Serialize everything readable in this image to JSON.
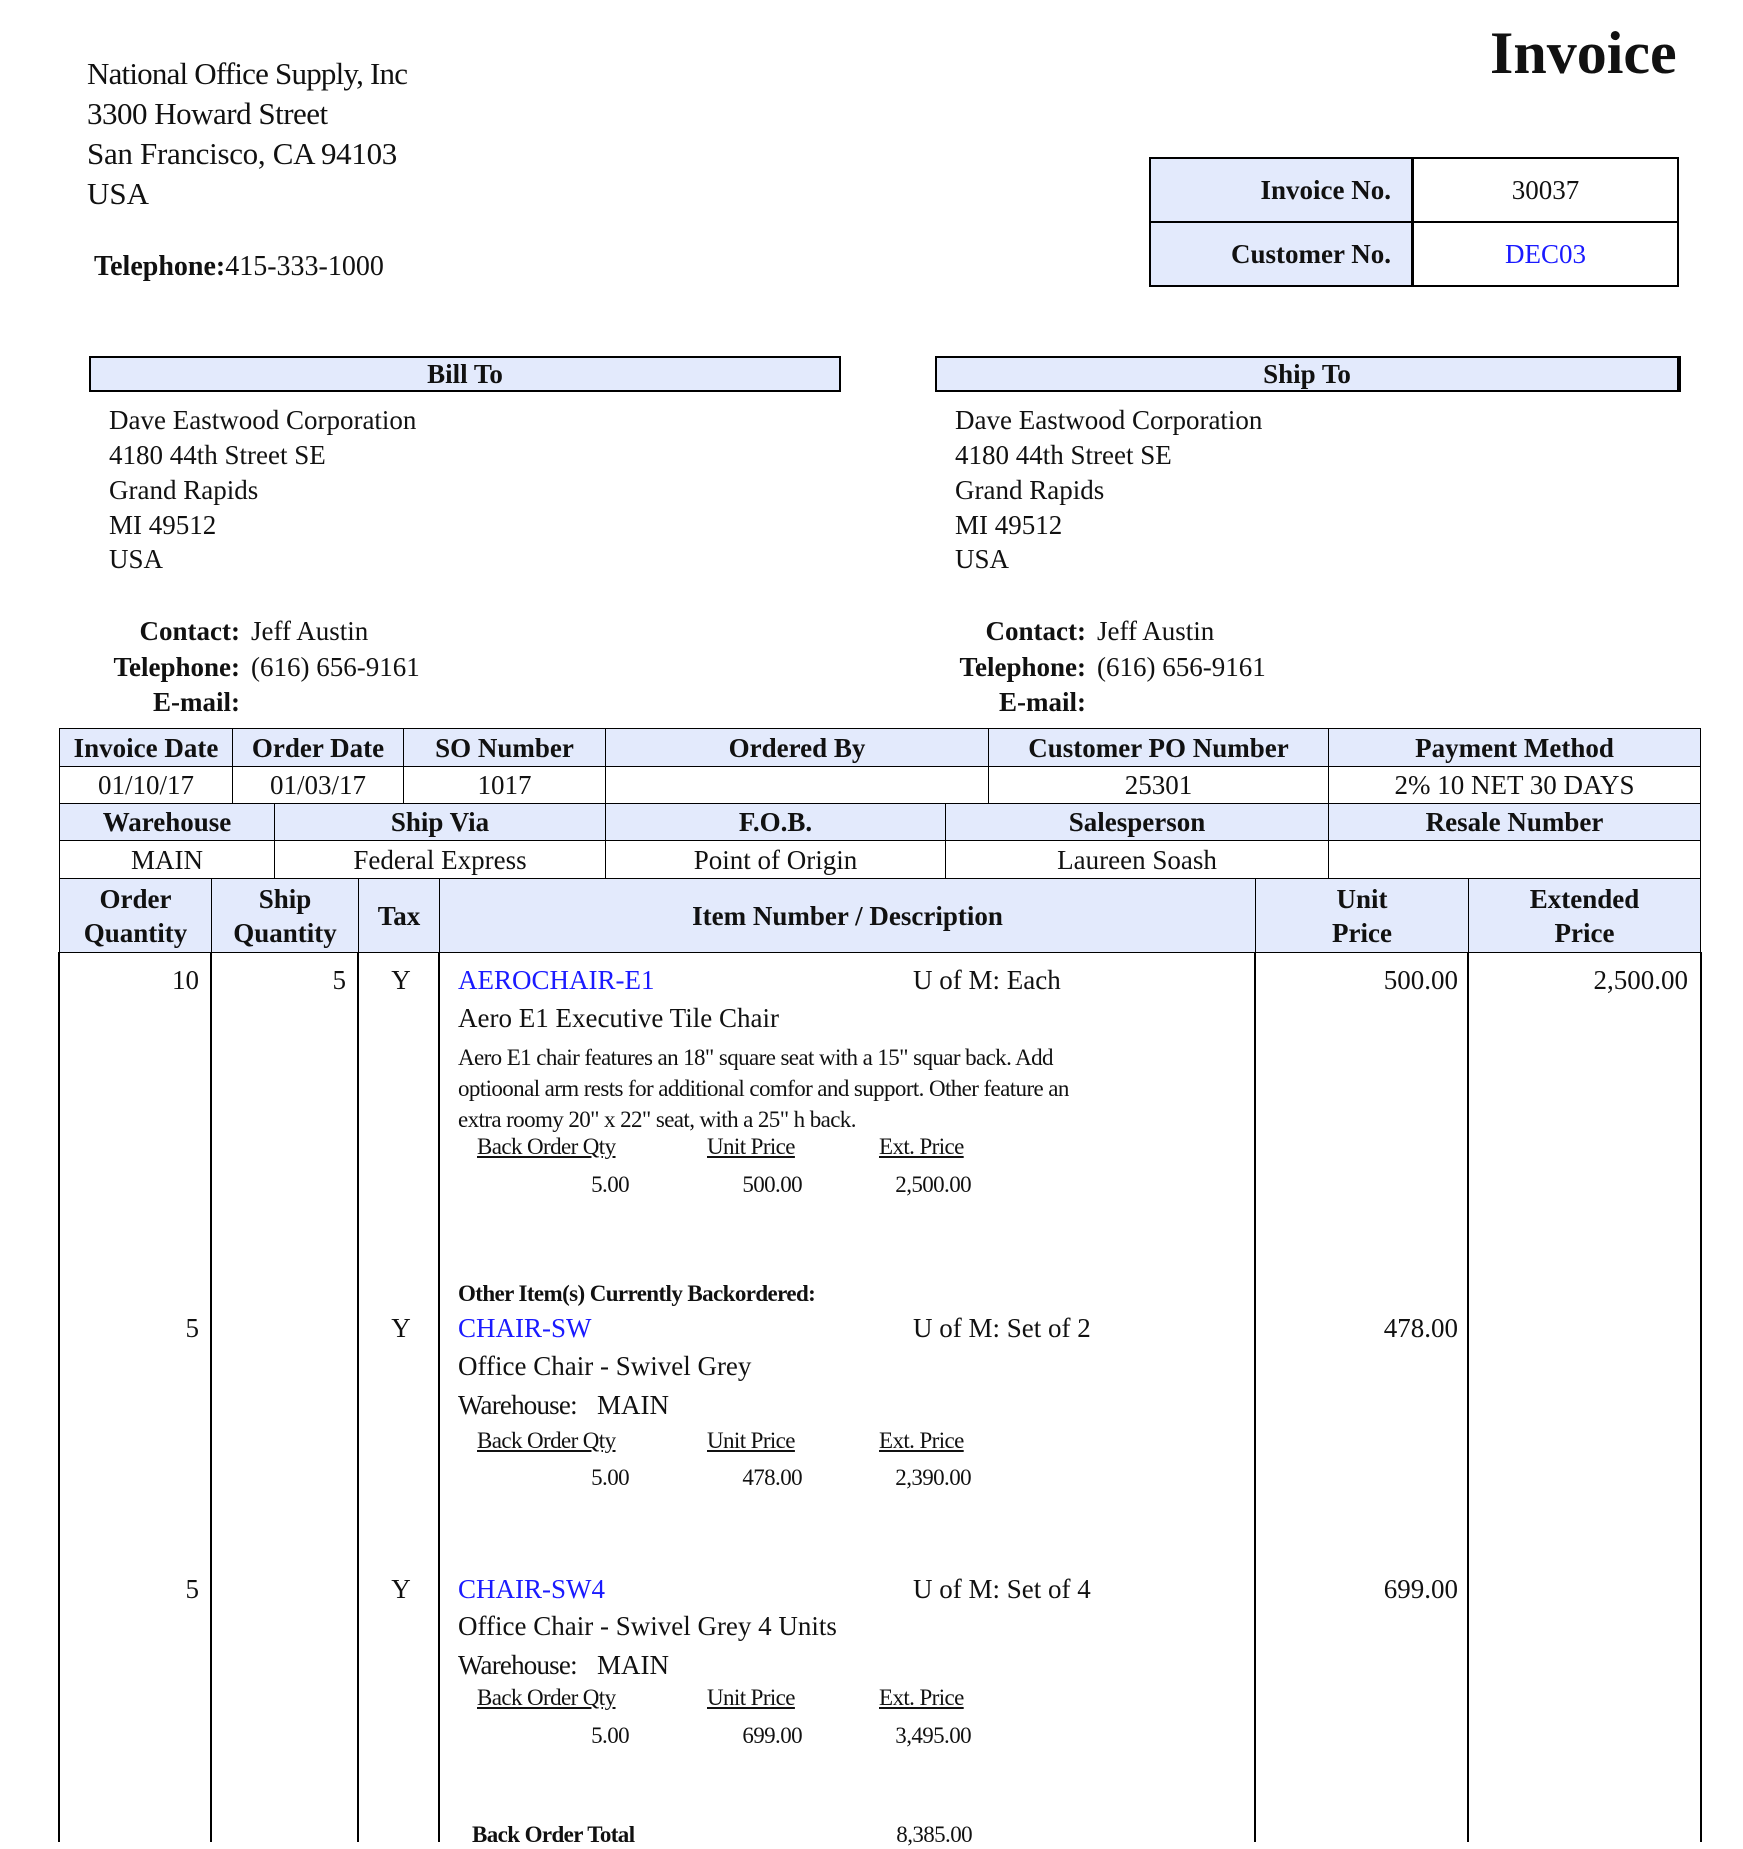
{
  "title": "Invoice",
  "company": {
    "name": "National Office Supply, Inc",
    "street": "3300 Howard Street",
    "city": "San Francisco, CA 94103",
    "country": "USA",
    "telephone_label": "Telephone:",
    "telephone": "415-333-1000"
  },
  "invoice_box": {
    "invoice_no_label": "Invoice No.",
    "invoice_no": "30037",
    "customer_no_label": "Customer No.",
    "customer_no": "DEC03"
  },
  "bill_to": {
    "heading": "Bill To",
    "lines": [
      "Dave Eastwood Corporation",
      "4180 44th Street SE",
      "Grand Rapids",
      "MI 49512",
      "USA"
    ],
    "contact_label": "Contact:",
    "contact": "Jeff Austin",
    "telephone_label": "Telephone:",
    "telephone": "(616) 656-9161",
    "email_label": "E-mail:"
  },
  "ship_to": {
    "heading": "Ship To",
    "lines": [
      "Dave Eastwood Corporation",
      "4180 44th Street SE",
      "Grand Rapids",
      "MI 49512",
      "USA"
    ],
    "contact_label": "Contact:",
    "contact": "Jeff Austin",
    "telephone_label": "Telephone:",
    "telephone": "(616) 656-9161",
    "email_label": "E-mail:"
  },
  "order_info": {
    "row1_headers": [
      "Invoice Date",
      "Order Date",
      "SO Number",
      "Ordered By",
      "Customer PO Number",
      "Payment Method"
    ],
    "row1_values": [
      "01/10/17",
      "01/03/17",
      "1017",
      "",
      "25301",
      "2% 10 NET 30 DAYS"
    ],
    "row2_headers": [
      "Warehouse",
      "Ship Via",
      "F.O.B.",
      "Salesperson",
      "Resale Number"
    ],
    "row2_values": [
      "MAIN",
      "Federal Express",
      "Point of Origin",
      "Laureen Soash",
      ""
    ]
  },
  "items_table": {
    "headers": {
      "order_qty": [
        "Order",
        "Quantity"
      ],
      "ship_qty": [
        "Ship",
        "Quantity"
      ],
      "tax": "Tax",
      "description": "Item Number / Description",
      "unit_price": [
        "Unit",
        "Price"
      ],
      "ext_price": [
        "Extended",
        "Price"
      ]
    },
    "sub_headers": {
      "back_order_qty": "Back Order Qty",
      "unit_price": "Unit Price",
      "ext_price": "Ext. Price"
    },
    "uom_label": "U of M:",
    "warehouse_label": "Warehouse:",
    "backordered_heading": "Other Item(s) Currently Backordered:",
    "items": [
      {
        "order_qty": "10",
        "ship_qty": "5",
        "tax": "Y",
        "item_number": "AEROCHAIR-E1",
        "uom": "Each",
        "description": "Aero E1 Executive Tile Chair",
        "long_description": [
          "Aero E1 chair features an 18\" square seat with a 15\" squar back.  Add",
          "optioonal arm rests for additional comfor and support.  Other feature an",
          "extra roomy 20\" x 22\" seat, with a 25\" h back."
        ],
        "unit_price": "500.00",
        "ext_price": "2,500.00",
        "back_order_qty": "5.00",
        "bo_unit_price": "500.00",
        "bo_ext_price": "2,500.00"
      },
      {
        "order_qty": "5",
        "ship_qty": "",
        "tax": "Y",
        "item_number": "CHAIR-SW",
        "uom": "Set of 2",
        "description": "Office Chair - Swivel Grey",
        "warehouse": "MAIN",
        "unit_price": "478.00",
        "ext_price": "",
        "back_order_qty": "5.00",
        "bo_unit_price": "478.00",
        "bo_ext_price": "2,390.00"
      },
      {
        "order_qty": "5",
        "ship_qty": "",
        "tax": "Y",
        "item_number": "CHAIR-SW4",
        "uom": "Set of 4",
        "description": "Office Chair - Swivel Grey 4 Units",
        "warehouse": "MAIN",
        "unit_price": "699.00",
        "ext_price": "",
        "back_order_qty": "5.00",
        "bo_unit_price": "699.00",
        "bo_ext_price": "3,495.00"
      }
    ],
    "back_order_total_label": "Back Order Total",
    "back_order_total": "8,385.00"
  },
  "colors": {
    "header_fill": "#e3eafc",
    "link_blue": "#1a1aff"
  }
}
